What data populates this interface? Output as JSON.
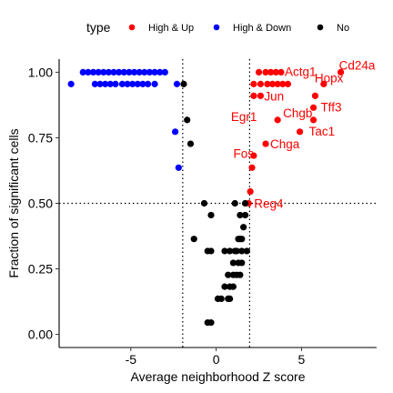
{
  "chart_data": {
    "type": "scatter",
    "xlabel": "Average neighborhood Z score",
    "ylabel": "Fraction of significant cells",
    "xlim": [
      -9.2,
      9.4
    ],
    "ylim": [
      -0.05,
      1.05
    ],
    "x_ticks": [
      {
        "value": -5,
        "label": "-5"
      },
      {
        "value": 0,
        "label": "0"
      },
      {
        "value": 5,
        "label": "5"
      }
    ],
    "y_ticks": [
      {
        "value": 0.0,
        "label": "0.00"
      },
      {
        "value": 0.25,
        "label": "0.25"
      },
      {
        "value": 0.5,
        "label": "0.50"
      },
      {
        "value": 0.75,
        "label": "0.75"
      },
      {
        "value": 1.0,
        "label": "1.00"
      }
    ],
    "reference_lines": {
      "vertical": [
        -1.96,
        1.96
      ],
      "horizontal": [
        0.5
      ],
      "style": "dotted"
    },
    "grid": false,
    "legend": {
      "title": "type",
      "position": "top",
      "entries": [
        {
          "label": "High & Up",
          "color": "#ff0000"
        },
        {
          "label": "High & Down",
          "color": "#0000ff"
        },
        {
          "label": "No",
          "color": "#000000"
        }
      ]
    },
    "series": [
      {
        "name": "High & Up",
        "color": "#ff0000",
        "points": [
          {
            "x": 2.5,
            "y": 1.0
          },
          {
            "x": 2.9,
            "y": 1.0
          },
          {
            "x": 3.2,
            "y": 1.0
          },
          {
            "x": 3.5,
            "y": 1.0
          },
          {
            "x": 3.8,
            "y": 1.0
          },
          {
            "x": 2.2,
            "y": 0.955
          },
          {
            "x": 2.6,
            "y": 0.955
          },
          {
            "x": 3.0,
            "y": 0.955
          },
          {
            "x": 3.3,
            "y": 0.955
          },
          {
            "x": 3.6,
            "y": 0.955
          },
          {
            "x": 3.9,
            "y": 0.955
          },
          {
            "x": 4.2,
            "y": 0.955
          },
          {
            "x": 2.2,
            "y": 0.91
          },
          {
            "x": 2.6,
            "y": 0.91
          },
          {
            "x": 7.3,
            "y": 1.0
          },
          {
            "x": 6.3,
            "y": 0.955
          },
          {
            "x": 5.8,
            "y": 0.91
          },
          {
            "x": 5.7,
            "y": 0.865
          },
          {
            "x": 5.7,
            "y": 0.818
          },
          {
            "x": 3.6,
            "y": 0.818
          },
          {
            "x": 4.9,
            "y": 0.773
          },
          {
            "x": 2.9,
            "y": 0.727
          },
          {
            "x": 2.2,
            "y": 0.682
          },
          {
            "x": 2.1,
            "y": 0.636
          },
          {
            "x": 2.0,
            "y": 0.545
          },
          {
            "x": 1.9,
            "y": 0.5
          }
        ],
        "labels": [
          {
            "text": "Actg1",
            "x": 3.7,
            "y": 1.0
          },
          {
            "text": "Cd24a",
            "x": 7.3,
            "y": 1.0
          },
          {
            "text": "Hopx",
            "x": 6.3,
            "y": 0.955
          },
          {
            "text": "Jun",
            "x": 2.6,
            "y": 0.91
          },
          {
            "text": "Tff3",
            "x": 5.8,
            "y": 0.865
          },
          {
            "text": "Egr1",
            "x": 2.6,
            "y": 0.818
          },
          {
            "text": "Chgb",
            "x": 3.6,
            "y": 0.818
          },
          {
            "text": "Tac1",
            "x": 4.9,
            "y": 0.773
          },
          {
            "text": "Chga",
            "x": 2.9,
            "y": 0.727
          },
          {
            "text": "Fos",
            "x": 2.1,
            "y": 0.636
          },
          {
            "text": "Reg4",
            "x": 1.9,
            "y": 0.5
          }
        ]
      },
      {
        "name": "High & Down",
        "color": "#0000ff",
        "points": [
          {
            "x": -7.8,
            "y": 1.0
          },
          {
            "x": -7.5,
            "y": 1.0
          },
          {
            "x": -7.2,
            "y": 1.0
          },
          {
            "x": -6.9,
            "y": 1.0
          },
          {
            "x": -6.6,
            "y": 1.0
          },
          {
            "x": -6.3,
            "y": 1.0
          },
          {
            "x": -6.0,
            "y": 1.0
          },
          {
            "x": -5.7,
            "y": 1.0
          },
          {
            "x": -5.4,
            "y": 1.0
          },
          {
            "x": -5.1,
            "y": 1.0
          },
          {
            "x": -4.8,
            "y": 1.0
          },
          {
            "x": -4.5,
            "y": 1.0
          },
          {
            "x": -4.2,
            "y": 1.0
          },
          {
            "x": -3.9,
            "y": 1.0
          },
          {
            "x": -3.6,
            "y": 1.0
          },
          {
            "x": -3.3,
            "y": 1.0
          },
          {
            "x": -3.0,
            "y": 1.0
          },
          {
            "x": -8.5,
            "y": 0.955
          },
          {
            "x": -7.1,
            "y": 0.955
          },
          {
            "x": -6.8,
            "y": 0.955
          },
          {
            "x": -6.5,
            "y": 0.955
          },
          {
            "x": -6.2,
            "y": 0.955
          },
          {
            "x": -5.9,
            "y": 0.955
          },
          {
            "x": -5.5,
            "y": 0.955
          },
          {
            "x": -5.2,
            "y": 0.955
          },
          {
            "x": -4.9,
            "y": 0.955
          },
          {
            "x": -4.6,
            "y": 0.955
          },
          {
            "x": -4.3,
            "y": 0.955
          },
          {
            "x": -4.0,
            "y": 0.955
          },
          {
            "x": -3.6,
            "y": 0.955
          },
          {
            "x": -2.3,
            "y": 0.955
          },
          {
            "x": -2.4,
            "y": 0.773
          },
          {
            "x": -2.2,
            "y": 0.636
          }
        ]
      },
      {
        "name": "No",
        "color": "#000000",
        "points": [
          {
            "x": -1.9,
            "y": 0.955
          },
          {
            "x": -1.7,
            "y": 0.818
          },
          {
            "x": -1.5,
            "y": 0.727
          },
          {
            "x": -0.7,
            "y": 0.5
          },
          {
            "x": -1.3,
            "y": 0.364
          },
          {
            "x": -0.3,
            "y": 0.455
          },
          {
            "x": 1.1,
            "y": 0.5
          },
          {
            "x": 1.7,
            "y": 0.5
          },
          {
            "x": 1.4,
            "y": 0.455
          },
          {
            "x": 1.7,
            "y": 0.455
          },
          {
            "x": 1.6,
            "y": 0.409
          },
          {
            "x": 1.5,
            "y": 0.364
          },
          {
            "x": 1.3,
            "y": 0.364
          },
          {
            "x": 1.4,
            "y": 0.364
          },
          {
            "x": 1.2,
            "y": 0.318
          },
          {
            "x": 1.5,
            "y": 0.318
          },
          {
            "x": 1.8,
            "y": 0.318
          },
          {
            "x": 0.5,
            "y": 0.318
          },
          {
            "x": 0.8,
            "y": 0.318
          },
          {
            "x": 1.1,
            "y": 0.318
          },
          {
            "x": -0.5,
            "y": 0.318
          },
          {
            "x": -0.3,
            "y": 0.318
          },
          {
            "x": 1.0,
            "y": 0.273
          },
          {
            "x": 1.3,
            "y": 0.273
          },
          {
            "x": 1.5,
            "y": 0.273
          },
          {
            "x": 1.2,
            "y": 0.227
          },
          {
            "x": 1.4,
            "y": 0.227
          },
          {
            "x": 0.7,
            "y": 0.227
          },
          {
            "x": 1.0,
            "y": 0.227
          },
          {
            "x": 0.8,
            "y": 0.182
          },
          {
            "x": 1.0,
            "y": 0.182
          },
          {
            "x": 0.7,
            "y": 0.136
          },
          {
            "x": 0.5,
            "y": 0.182
          },
          {
            "x": 0.8,
            "y": 0.136
          },
          {
            "x": 0.1,
            "y": 0.136
          },
          {
            "x": 0.3,
            "y": 0.136
          },
          {
            "x": -0.5,
            "y": 0.045
          },
          {
            "x": -0.3,
            "y": 0.045
          }
        ]
      }
    ]
  }
}
